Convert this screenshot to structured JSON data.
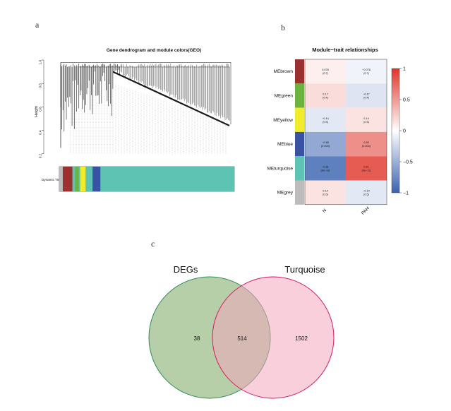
{
  "panel_labels": {
    "a": "a",
    "b": "b",
    "c": "c"
  },
  "colors": {
    "brown": "#9c2f2f",
    "green": "#6cb33f",
    "yellow": "#f1ec2a",
    "blue": "#3a52a3",
    "turquoise": "#5ec3b2",
    "grey": "#bcbcbc",
    "heat_neg": "#3a62b0",
    "heat_mid": "#ffffff",
    "heat_pos": "#e0352a",
    "venn_left": "#a9c79a",
    "venn_right": "#f2a7bc",
    "venn_left_stroke": "#2e8b57",
    "venn_right_stroke": "#d81b60"
  },
  "chart_data": [
    {
      "type": "dendrogram",
      "title": "Gene dendrogram and module colors(GEO)",
      "ylabel": "Height",
      "yticks": [
        "0.2",
        "0.4",
        "0.6",
        "0.8",
        "1.0"
      ],
      "ylim": [
        0.15,
        1.0
      ],
      "track_label": "Dynamic Tree Cut",
      "color_track": [
        {
          "color": "grey",
          "share": 0.02
        },
        {
          "color": "brown",
          "share": 0.055
        },
        {
          "color": "turquoise",
          "share": 0.015
        },
        {
          "color": "green",
          "share": 0.022
        },
        {
          "color": "turquoise",
          "share": 0.008
        },
        {
          "color": "yellow",
          "share": 0.03
        },
        {
          "color": "turquoise",
          "share": 0.04
        },
        {
          "color": "blue",
          "share": 0.045
        },
        {
          "color": "turquoise",
          "share": 0.765
        }
      ]
    },
    {
      "type": "heatmap",
      "title": "Module−trait relationships",
      "columns": [
        "N",
        "PAH"
      ],
      "rows": [
        {
          "module": "MEbrown",
          "color": "brown",
          "values": [
            0.078,
            -0.078
          ],
          "labels": [
            "0.078",
            "−0.078"
          ],
          "pvals": [
            "(0.7)",
            "(0.7)"
          ]
        },
        {
          "module": "MEgreen",
          "color": "green",
          "values": [
            0.17,
            -0.17
          ],
          "labels": [
            "0.17",
            "−0.17"
          ],
          "pvals": [
            "(0.4)",
            "(0.4)"
          ]
        },
        {
          "module": "MEyellow",
          "color": "yellow",
          "values": [
            -0.14,
            0.14
          ],
          "labels": [
            "−0.14",
            "0.14"
          ],
          "pvals": [
            "(0.5)",
            "(0.5)"
          ]
        },
        {
          "module": "MEblue",
          "color": "blue",
          "values": [
            -0.55,
            0.55
          ],
          "labels": [
            "−0.55",
            "0.55"
          ],
          "pvals": [
            "(0.003)",
            "(0.003)"
          ]
        },
        {
          "module": "MEturquoise",
          "color": "turquoise",
          "values": [
            -0.81,
            0.81
          ],
          "labels": [
            "−0.81",
            "0.81"
          ],
          "pvals": [
            "(9e−11)",
            "(9e−11)"
          ]
        },
        {
          "module": "MEgrey",
          "color": "grey",
          "values": [
            0.14,
            -0.14
          ],
          "labels": [
            "0.14",
            "−0.14"
          ],
          "pvals": [
            "(0.5)",
            "(0.5)"
          ]
        }
      ],
      "legend": {
        "range": [
          -1,
          1
        ],
        "ticks": [
          "1",
          "0.5",
          "0",
          "−0.5",
          "−1"
        ],
        "tick_values": [
          1,
          0.5,
          0,
          -0.5,
          -1
        ]
      }
    },
    {
      "type": "venn",
      "sets": [
        {
          "name": "DEGs",
          "only": 38
        },
        {
          "name": "Turquoise",
          "only": 1502
        }
      ],
      "intersection": 514
    }
  ]
}
